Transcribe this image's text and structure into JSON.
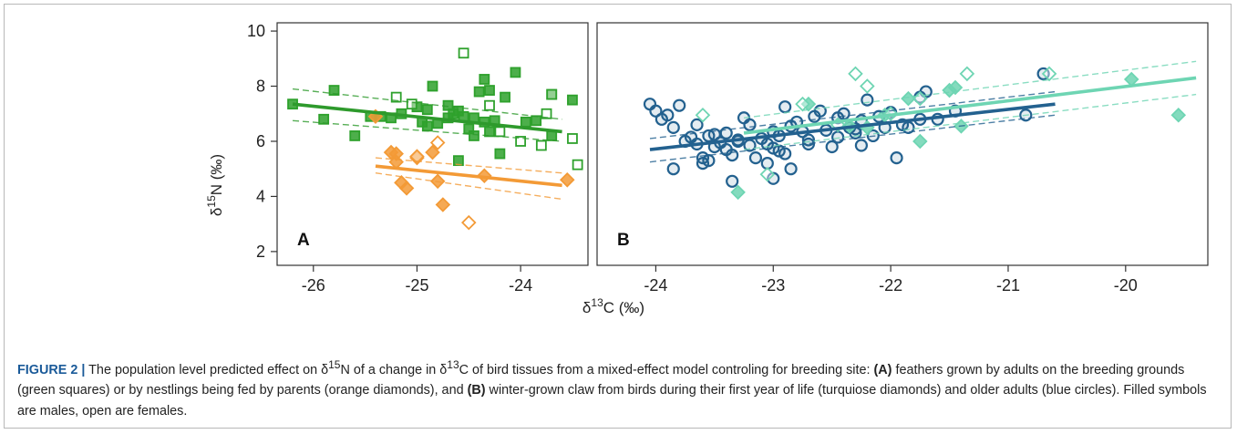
{
  "chart_data": [
    {
      "type": "scatter",
      "panel_label": "A",
      "xlim": [
        -26.35,
        -23.35
      ],
      "ylim": [
        1.5,
        10.3
      ],
      "xticks": [
        "-26",
        "-25",
        "-24"
      ],
      "yticks": [
        "2",
        "4",
        "6",
        "8",
        "10"
      ],
      "series": [
        {
          "marker": "square",
          "fill": "filled",
          "color": "#2ea12c",
          "points": [
            [
              -26.2,
              7.35
            ],
            [
              -25.9,
              6.8
            ],
            [
              -25.8,
              7.85
            ],
            [
              -25.6,
              6.2
            ],
            [
              -25.45,
              6.9
            ],
            [
              -25.35,
              6.9
            ],
            [
              -25.25,
              6.85
            ],
            [
              -25.15,
              7.0
            ],
            [
              -25.0,
              7.25
            ],
            [
              -24.95,
              6.7
            ],
            [
              -24.9,
              6.55
            ],
            [
              -24.9,
              7.15
            ],
            [
              -24.85,
              8.0
            ],
            [
              -24.8,
              6.65
            ],
            [
              -24.7,
              7.3
            ],
            [
              -24.7,
              6.85
            ],
            [
              -24.65,
              7.0
            ],
            [
              -24.6,
              5.3
            ],
            [
              -24.6,
              7.1
            ],
            [
              -24.55,
              6.9
            ],
            [
              -24.5,
              6.45
            ],
            [
              -24.45,
              6.2
            ],
            [
              -24.45,
              6.85
            ],
            [
              -24.4,
              7.8
            ],
            [
              -24.35,
              6.7
            ],
            [
              -24.35,
              8.25
            ],
            [
              -24.3,
              7.85
            ],
            [
              -24.3,
              6.35
            ],
            [
              -24.25,
              6.75
            ],
            [
              -24.2,
              5.55
            ],
            [
              -24.15,
              7.6
            ],
            [
              -24.05,
              8.5
            ],
            [
              -23.95,
              6.7
            ],
            [
              -23.85,
              6.75
            ],
            [
              -23.7,
              7.7
            ],
            [
              -23.7,
              6.2
            ],
            [
              -23.5,
              7.5
            ]
          ]
        },
        {
          "marker": "square",
          "fill": "open",
          "color": "#2ea12c",
          "points": [
            [
              -25.2,
              7.6
            ],
            [
              -25.05,
              7.35
            ],
            [
              -24.55,
              9.2
            ],
            [
              -24.3,
              7.3
            ],
            [
              -24.2,
              6.35
            ],
            [
              -24.0,
              6.0
            ],
            [
              -23.8,
              5.85
            ],
            [
              -23.75,
              7.0
            ],
            [
              -23.7,
              7.7
            ],
            [
              -23.5,
              6.1
            ],
            [
              -23.45,
              5.15
            ]
          ]
        },
        {
          "marker": "diamond",
          "fill": "filled",
          "color": "#f39a36",
          "points": [
            [
              -25.4,
              6.9
            ],
            [
              -25.25,
              5.6
            ],
            [
              -25.2,
              5.55
            ],
            [
              -25.2,
              5.25
            ],
            [
              -25.15,
              4.5
            ],
            [
              -25.1,
              4.3
            ],
            [
              -25.0,
              5.4
            ],
            [
              -24.85,
              5.6
            ],
            [
              -24.8,
              4.55
            ],
            [
              -24.75,
              3.7
            ],
            [
              -24.35,
              4.75
            ],
            [
              -23.55,
              4.6
            ]
          ]
        },
        {
          "marker": "diamond",
          "fill": "open",
          "color": "#f39a36",
          "points": [
            [
              -25.0,
              5.45
            ],
            [
              -24.8,
              5.95
            ],
            [
              -24.5,
              3.05
            ]
          ]
        }
      ],
      "fits": [
        {
          "color": "#2e9a2c",
          "x": [
            -26.2,
            -23.6
          ],
          "y": [
            7.35,
            6.35
          ],
          "ci_low": [
            6.75,
            6.0
          ],
          "ci_high": [
            7.9,
            6.8
          ]
        },
        {
          "color": "#f39a36",
          "x": [
            -25.4,
            -23.6
          ],
          "y": [
            5.1,
            4.4
          ],
          "ci_low": [
            4.85,
            3.9
          ],
          "ci_high": [
            5.4,
            4.85
          ]
        }
      ]
    },
    {
      "type": "scatter",
      "panel_label": "B",
      "xlim": [
        -24.5,
        -19.3
      ],
      "ylim": [
        1.5,
        10.3
      ],
      "xticks": [
        "-24",
        "-23",
        "-22",
        "-21",
        "-20"
      ],
      "yticks": [],
      "series": [
        {
          "marker": "circle",
          "fill": "open",
          "color": "#23618f",
          "points": [
            [
              -24.05,
              7.35
            ],
            [
              -24.0,
              7.1
            ],
            [
              -23.95,
              6.8
            ],
            [
              -23.9,
              6.95
            ],
            [
              -23.85,
              6.5
            ],
            [
              -23.8,
              7.3
            ],
            [
              -23.85,
              5.0
            ],
            [
              -23.75,
              6.0
            ],
            [
              -23.7,
              6.15
            ],
            [
              -23.65,
              5.9
            ],
            [
              -23.6,
              5.4
            ],
            [
              -23.6,
              5.2
            ],
            [
              -23.55,
              5.3
            ],
            [
              -23.5,
              5.8
            ],
            [
              -23.5,
              6.25
            ],
            [
              -23.45,
              5.95
            ],
            [
              -23.4,
              5.7
            ],
            [
              -23.4,
              6.3
            ],
            [
              -23.35,
              5.5
            ],
            [
              -23.3,
              6.0
            ],
            [
              -23.25,
              6.85
            ],
            [
              -23.2,
              6.6
            ],
            [
              -23.2,
              5.85
            ],
            [
              -23.15,
              5.4
            ],
            [
              -23.1,
              6.1
            ],
            [
              -23.05,
              5.9
            ],
            [
              -23.0,
              5.75
            ],
            [
              -22.95,
              5.65
            ],
            [
              -22.95,
              6.2
            ],
            [
              -22.9,
              7.25
            ],
            [
              -22.85,
              5.0
            ],
            [
              -22.85,
              6.55
            ],
            [
              -22.8,
              6.7
            ],
            [
              -22.75,
              6.35
            ],
            [
              -22.7,
              6.05
            ],
            [
              -22.65,
              6.9
            ],
            [
              -22.6,
              7.1
            ],
            [
              -22.55,
              6.4
            ],
            [
              -22.5,
              5.8
            ],
            [
              -22.45,
              6.85
            ],
            [
              -22.45,
              6.15
            ],
            [
              -22.4,
              7.0
            ],
            [
              -22.35,
              6.5
            ],
            [
              -22.3,
              6.3
            ],
            [
              -22.25,
              5.85
            ],
            [
              -22.25,
              6.75
            ],
            [
              -22.2,
              7.5
            ],
            [
              -22.15,
              6.2
            ],
            [
              -22.1,
              6.9
            ],
            [
              -22.05,
              6.5
            ],
            [
              -22.0,
              7.05
            ],
            [
              -21.95,
              5.4
            ],
            [
              -21.9,
              6.6
            ],
            [
              -21.85,
              6.5
            ],
            [
              -21.75,
              6.8
            ],
            [
              -21.75,
              7.6
            ],
            [
              -21.7,
              7.8
            ],
            [
              -21.6,
              6.8
            ],
            [
              -21.45,
              7.1
            ],
            [
              -20.85,
              6.95
            ],
            [
              -20.7,
              8.45
            ],
            [
              -23.3,
              6.05
            ],
            [
              -23.05,
              5.2
            ],
            [
              -23.0,
              6.35
            ],
            [
              -22.9,
              5.55
            ],
            [
              -22.7,
              5.9
            ],
            [
              -23.65,
              6.6
            ],
            [
              -23.55,
              6.2
            ],
            [
              -23.35,
              4.55
            ],
            [
              -22.3,
              6.45
            ],
            [
              -23.0,
              4.65
            ]
          ]
        },
        {
          "marker": "diamond",
          "fill": "filled",
          "color": "#6ed5b3",
          "points": [
            [
              -23.3,
              4.15
            ],
            [
              -22.7,
              7.35
            ],
            [
              -22.2,
              6.5
            ],
            [
              -21.75,
              6.0
            ],
            [
              -21.5,
              7.85
            ],
            [
              -21.45,
              7.95
            ],
            [
              -21.4,
              6.55
            ],
            [
              -19.95,
              8.25
            ],
            [
              -19.55,
              6.95
            ],
            [
              -22.05,
              6.95
            ],
            [
              -21.85,
              7.55
            ],
            [
              -22.35,
              6.55
            ]
          ]
        },
        {
          "marker": "diamond",
          "fill": "open",
          "color": "#6ed5b3",
          "points": [
            [
              -23.6,
              6.95
            ],
            [
              -23.05,
              4.8
            ],
            [
              -22.75,
              7.35
            ],
            [
              -22.3,
              8.45
            ],
            [
              -22.2,
              8.0
            ],
            [
              -21.75,
              7.55
            ],
            [
              -21.35,
              8.45
            ],
            [
              -20.65,
              8.45
            ],
            [
              -22.45,
              6.6
            ],
            [
              -22.0,
              7.0
            ]
          ]
        }
      ],
      "fits": [
        {
          "color": "#6ed5b3",
          "x": [
            -23.25,
            -19.4
          ],
          "y": [
            6.3,
            8.3
          ],
          "ci_low": [
            5.7,
            7.7
          ],
          "ci_high": [
            6.85,
            8.9
          ]
        },
        {
          "color": "#23618f",
          "x": [
            -24.05,
            -20.6
          ],
          "y": [
            5.7,
            7.35
          ],
          "ci_low": [
            5.25,
            6.95
          ],
          "ci_high": [
            6.1,
            7.8
          ]
        }
      ]
    }
  ],
  "axes": {
    "ylabel_base": "δ",
    "ylabel_sup": "15",
    "ylabel_rest": "N (‰)",
    "xlabel_base": "δ",
    "xlabel_sup": "13",
    "xlabel_rest": "C (‰)"
  },
  "caption": {
    "label": "FIGURE 2 |",
    "t1": " The population level predicted effect on δ",
    "s1": "15",
    "t2": "N of a change in δ",
    "s2": "13",
    "t3": "C of bird tissues from a mixed-effect model controling for breeding site: ",
    "b1": "(A)",
    "t4": " feathers grown by adults on the breeding grounds (green squares) or by nestlings being fed by parents (orange diamonds), and ",
    "b2": "(B)",
    "t5": " winter-grown claw from birds during their first year of life (turquiose diamonds) and older adults (blue circles). Filled symbols are males, open are females."
  }
}
